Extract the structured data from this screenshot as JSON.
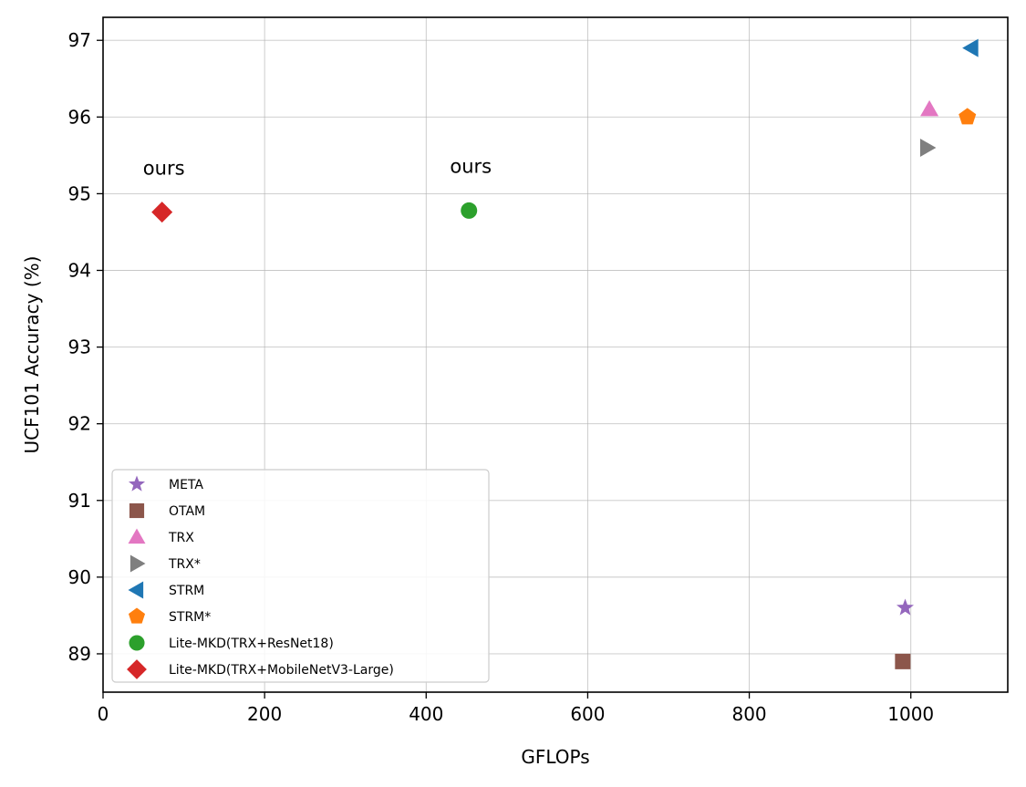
{
  "chart_data": {
    "type": "scatter",
    "xlabel": "GFLOPs",
    "ylabel": "UCF101 Accuracy (%)",
    "xlim": [
      0,
      1120
    ],
    "ylim": [
      88.5,
      97.3
    ],
    "xticks": [
      0,
      200,
      400,
      600,
      800,
      1000
    ],
    "yticks": [
      89,
      90,
      91,
      92,
      93,
      94,
      95,
      96,
      97
    ],
    "xtick_labels": [
      "0",
      "200",
      "400",
      "600",
      "800",
      "1000"
    ],
    "ytick_labels": [
      "89",
      "90",
      "91",
      "92",
      "93",
      "94",
      "95",
      "96",
      "97"
    ],
    "grid": true,
    "legend_position": "lower-left",
    "series": [
      {
        "name": "META",
        "marker": "star",
        "color": "#9467bd",
        "x": 993,
        "y": 89.6
      },
      {
        "name": "OTAM",
        "marker": "square",
        "color": "#8c564b",
        "x": 990,
        "y": 88.9
      },
      {
        "name": "TRX",
        "marker": "triangle-up",
        "color": "#e377c2",
        "x": 1023,
        "y": 96.1
      },
      {
        "name": "TRX*",
        "marker": "triangle-right",
        "color": "#7f7f7f",
        "x": 1020,
        "y": 95.6
      },
      {
        "name": "STRM",
        "marker": "triangle-left",
        "color": "#1f77b4",
        "x": 1075,
        "y": 96.9
      },
      {
        "name": "STRM*",
        "marker": "pentagon",
        "color": "#ff7f0e",
        "x": 1070,
        "y": 96.0
      },
      {
        "name": "Lite-MKD(TRX+ResNet18)",
        "marker": "circle",
        "color": "#2ca02c",
        "x": 453,
        "y": 94.78
      },
      {
        "name": "Lite-MKD(TRX+MobileNetV3-Large)",
        "marker": "diamond",
        "color": "#d62728",
        "x": 73,
        "y": 94.76
      }
    ],
    "annotations": [
      {
        "text": "ours",
        "x": 73,
        "y": 95.25
      },
      {
        "text": "ours",
        "x": 453,
        "y": 95.27
      }
    ]
  }
}
